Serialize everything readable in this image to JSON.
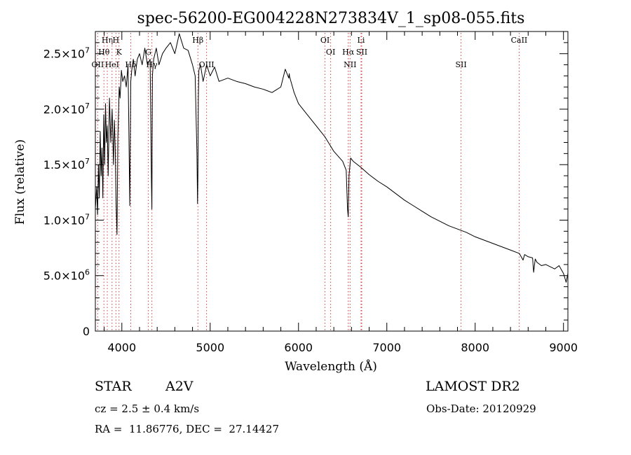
{
  "chart_data": {
    "type": "line",
    "title": "spec-56200-EG004228N273834V_1_sp08-055.fits",
    "xlabel": "Wavelength (Å)",
    "ylabel": "Flux (relative)",
    "xlim": [
      3700,
      9050
    ],
    "ylim": [
      0,
      27000000
    ],
    "x_ticks": [
      4000,
      5000,
      6000,
      7000,
      8000,
      9000
    ],
    "x_tick_labels": [
      "4000",
      "5000",
      "6000",
      "7000",
      "8000",
      "9000"
    ],
    "y_ticks": [
      0,
      5000000,
      10000000,
      15000000,
      20000000,
      25000000
    ],
    "y_tick_labels": [
      {
        "mantissa": "0",
        "exp": ""
      },
      {
        "mantissa": "5.0×10",
        "exp": "6"
      },
      {
        "mantissa": "1.0×10",
        "exp": "7"
      },
      {
        "mantissa": "1.5×10",
        "exp": "7"
      },
      {
        "mantissa": "2.0×10",
        "exp": "7"
      },
      {
        "mantissa": "2.5×10",
        "exp": "7"
      }
    ],
    "grid": false,
    "series": [
      {
        "color": "#000000",
        "x": [
          3700,
          3715,
          3725,
          3735,
          3745,
          3755,
          3765,
          3775,
          3785,
          3795,
          3805,
          3815,
          3825,
          3835,
          3845,
          3860,
          3875,
          3890,
          3905,
          3915,
          3925,
          3935,
          3945,
          3955,
          3962,
          3970,
          3980,
          3995,
          4010,
          4030,
          4050,
          4070,
          4090,
          4101,
          4112,
          4130,
          4150,
          4175,
          4200,
          4230,
          4260,
          4290,
          4320,
          4335,
          4340,
          4346,
          4360,
          4390,
          4420,
          4460,
          4500,
          4550,
          4600,
          4650,
          4700,
          4750,
          4800,
          4830,
          4850,
          4857,
          4861,
          4866,
          4872,
          4890,
          4920,
          4960,
          5000,
          5050,
          5100,
          5200,
          5300,
          5400,
          5500,
          5600,
          5700,
          5800,
          5850,
          5890,
          5895,
          5900,
          5950,
          6000,
          6100,
          6200,
          6300,
          6400,
          6500,
          6540,
          6555,
          6563,
          6572,
          6590,
          6620,
          6700,
          6800,
          6900,
          7000,
          7100,
          7200,
          7300,
          7400,
          7500,
          7600,
          7700,
          7800,
          7900,
          8000,
          8100,
          8200,
          8300,
          8400,
          8500,
          8542,
          8560,
          8600,
          8650,
          8662,
          8680,
          8700,
          8750,
          8800,
          8850,
          8900,
          8950,
          9000,
          9030,
          9050
        ],
        "y": [
          11000000,
          13000000,
          10500000,
          15000000,
          12000000,
          18000000,
          14000000,
          16500000,
          12000000,
          19500000,
          15000000,
          20500000,
          17000000,
          18500000,
          14000000,
          21000000,
          17000000,
          20000000,
          15000000,
          19000000,
          16500000,
          11500000,
          8700000,
          17500000,
          19500000,
          22000000,
          21000000,
          23500000,
          22500000,
          23000000,
          22000000,
          24000000,
          11300000,
          22500000,
          23500000,
          24500000,
          23000000,
          24500000,
          25000000,
          24000000,
          25500000,
          24000000,
          24500000,
          13500000,
          11000000,
          23000000,
          24500000,
          25500000,
          24000000,
          25000000,
          25500000,
          26000000,
          25000000,
          26800000,
          25500000,
          25300000,
          24000000,
          23000000,
          16000000,
          11500000,
          14000000,
          21000000,
          23500000,
          24000000,
          22500000,
          24000000,
          23000000,
          23800000,
          22500000,
          22800000,
          22500000,
          22300000,
          22000000,
          21800000,
          21500000,
          22000000,
          23600000,
          22800000,
          23200000,
          22900000,
          21500000,
          20500000,
          19500000,
          18500000,
          17500000,
          16200000,
          15300000,
          14500000,
          11000000,
          10300000,
          14000000,
          15600000,
          15300000,
          14800000,
          14100000,
          13500000,
          13000000,
          12400000,
          11800000,
          11300000,
          10800000,
          10300000,
          9900000,
          9500000,
          9200000,
          8900000,
          8500000,
          8200000,
          7900000,
          7600000,
          7300000,
          7000000,
          6400000,
          6900000,
          6700000,
          6600000,
          5300000,
          6500000,
          6200000,
          5900000,
          6000000,
          5800000,
          5600000,
          5900000,
          5200000,
          4400000,
          5200000
        ]
      }
    ],
    "line_markers": [
      {
        "label": "OII",
        "wavelength": 3727,
        "row": 3
      },
      {
        "label": "Hθ",
        "wavelength": 3797,
        "row": 2
      },
      {
        "label": "Hη",
        "wavelength": 3835,
        "row": 1
      },
      {
        "label": "H",
        "wavelength": 3933,
        "row": 1
      },
      {
        "label": "HeI",
        "wavelength": 3889,
        "row": 3
      },
      {
        "label": "K",
        "wavelength": 3968,
        "row": 2
      },
      {
        "label": "Hδ",
        "wavelength": 4101,
        "row": 3
      },
      {
        "label": "G",
        "wavelength": 4300,
        "row": 2
      },
      {
        "label": "Hγ",
        "wavelength": 4340,
        "row": 3
      },
      {
        "label": "Hβ",
        "wavelength": 4861,
        "row": 1
      },
      {
        "label": "OIII",
        "wavelength": 4959,
        "row": 3
      },
      {
        "label": "OI",
        "wavelength": 6300,
        "row": 1
      },
      {
        "label": "OI",
        "wavelength": 6364,
        "row": 2
      },
      {
        "label": "Hα",
        "wavelength": 6563,
        "row": 2
      },
      {
        "label": "NII",
        "wavelength": 6584,
        "row": 3
      },
      {
        "label": "Li",
        "wavelength": 6708,
        "row": 1
      },
      {
        "label": "SII",
        "wavelength": 6716,
        "row": 2
      },
      {
        "label": "SII",
        "wavelength": 7840,
        "row": 3
      },
      {
        "label": "CaII",
        "wavelength": 8498,
        "row": 1
      }
    ]
  },
  "info": {
    "class_label": "STAR",
    "subclass": "A2V",
    "survey": "LAMOST DR2",
    "cz": "cz = 2.5 ± 0.4 km/s",
    "obs_date": "Obs-Date: 20120929",
    "coords": "RA =  11.86776, DEC =  27.14427"
  }
}
